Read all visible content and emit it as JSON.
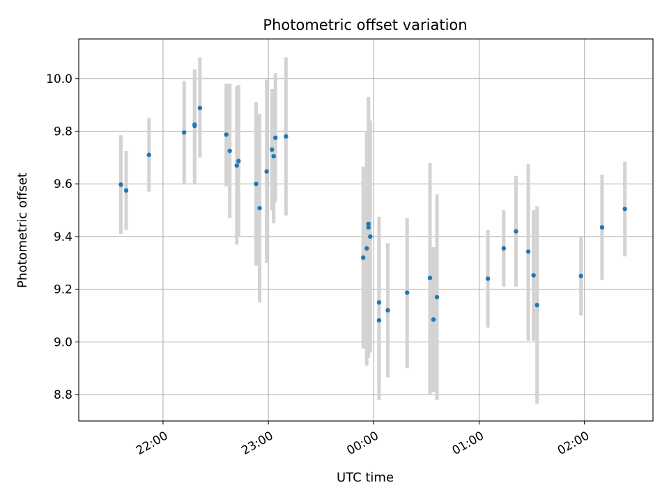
{
  "chart_data": {
    "type": "scatter",
    "title": "Photometric offset variation",
    "xlabel": "UTC time",
    "ylabel": "Photometric offset",
    "xlim": [
      "21:12",
      "02:39"
    ],
    "ylim": [
      8.7,
      10.15
    ],
    "grid": true,
    "x_ticks": [
      "22:00",
      "23:00",
      "00:00",
      "01:00",
      "02:00"
    ],
    "y_ticks": [
      "8.8",
      "9.0",
      "9.2",
      "9.4",
      "9.6",
      "9.8",
      "10.0"
    ],
    "colors": {
      "point": "#1f77b4",
      "errorbar": "#d3d3d3",
      "grid": "#b0b0b0"
    },
    "series": [
      {
        "points": [
          {
            "x": "21:36",
            "y": 9.597,
            "lo": 9.41,
            "hi": 9.785
          },
          {
            "x": "21:39",
            "y": 9.575,
            "lo": 9.425,
            "hi": 9.725
          },
          {
            "x": "21:52",
            "y": 9.71,
            "lo": 9.57,
            "hi": 9.85
          },
          {
            "x": "22:12",
            "y": 9.795,
            "lo": 9.6,
            "hi": 9.99
          },
          {
            "x": "22:18",
            "y": 9.82,
            "lo": 9.6,
            "hi": 10.035
          },
          {
            "x": "22:18",
            "y": 9.825,
            "lo": 9.62,
            "hi": 10.03
          },
          {
            "x": "22:21",
            "y": 9.888,
            "lo": 9.7,
            "hi": 10.08
          },
          {
            "x": "22:36",
            "y": 9.787,
            "lo": 9.59,
            "hi": 9.98
          },
          {
            "x": "22:38",
            "y": 9.725,
            "lo": 9.47,
            "hi": 9.98
          },
          {
            "x": "22:43",
            "y": 9.687,
            "lo": 9.4,
            "hi": 9.975
          },
          {
            "x": "22:42",
            "y": 9.67,
            "lo": 9.37,
            "hi": 9.97
          },
          {
            "x": "22:53",
            "y": 9.6,
            "lo": 9.29,
            "hi": 9.91
          },
          {
            "x": "22:55",
            "y": 9.508,
            "lo": 9.15,
            "hi": 9.865
          },
          {
            "x": "22:59",
            "y": 9.647,
            "lo": 9.3,
            "hi": 9.995
          },
          {
            "x": "23:02",
            "y": 9.73,
            "lo": 9.5,
            "hi": 9.96
          },
          {
            "x": "23:03",
            "y": 9.705,
            "lo": 9.45,
            "hi": 9.96
          },
          {
            "x": "23:04",
            "y": 9.775,
            "lo": 9.53,
            "hi": 10.02
          },
          {
            "x": "23:10",
            "y": 9.78,
            "lo": 9.48,
            "hi": 10.08
          },
          {
            "x": "23:54",
            "y": 9.32,
            "lo": 8.975,
            "hi": 9.665
          },
          {
            "x": "23:56",
            "y": 9.355,
            "lo": 8.91,
            "hi": 9.8
          },
          {
            "x": "23:57",
            "y": 9.435,
            "lo": 8.94,
            "hi": 9.93
          },
          {
            "x": "23:57",
            "y": 9.448,
            "lo": 9.05,
            "hi": 9.84
          },
          {
            "x": "23:58",
            "y": 9.4,
            "lo": 8.96,
            "hi": 9.84
          },
          {
            "x": "00:03",
            "y": 9.15,
            "lo": 8.825,
            "hi": 9.475
          },
          {
            "x": "00:03",
            "y": 9.082,
            "lo": 8.78,
            "hi": 9.38
          },
          {
            "x": "00:08",
            "y": 9.12,
            "lo": 8.865,
            "hi": 9.375
          },
          {
            "x": "00:19",
            "y": 9.187,
            "lo": 8.9,
            "hi": 9.47
          },
          {
            "x": "00:32",
            "y": 9.243,
            "lo": 8.8,
            "hi": 9.68
          },
          {
            "x": "00:34",
            "y": 9.085,
            "lo": 8.81,
            "hi": 9.36
          },
          {
            "x": "00:36",
            "y": 9.17,
            "lo": 8.78,
            "hi": 9.56
          },
          {
            "x": "01:05",
            "y": 9.24,
            "lo": 9.055,
            "hi": 9.425
          },
          {
            "x": "01:14",
            "y": 9.355,
            "lo": 9.21,
            "hi": 9.5
          },
          {
            "x": "01:21",
            "y": 9.42,
            "lo": 9.21,
            "hi": 9.63
          },
          {
            "x": "01:28",
            "y": 9.343,
            "lo": 9.005,
            "hi": 9.675
          },
          {
            "x": "01:31",
            "y": 9.253,
            "lo": 9.005,
            "hi": 9.5
          },
          {
            "x": "01:33",
            "y": 9.14,
            "lo": 8.765,
            "hi": 9.515
          },
          {
            "x": "01:58",
            "y": 9.25,
            "lo": 9.1,
            "hi": 9.4
          },
          {
            "x": "02:10",
            "y": 9.435,
            "lo": 9.235,
            "hi": 9.635
          },
          {
            "x": "02:23",
            "y": 9.505,
            "lo": 9.325,
            "hi": 9.685
          }
        ]
      }
    ]
  }
}
